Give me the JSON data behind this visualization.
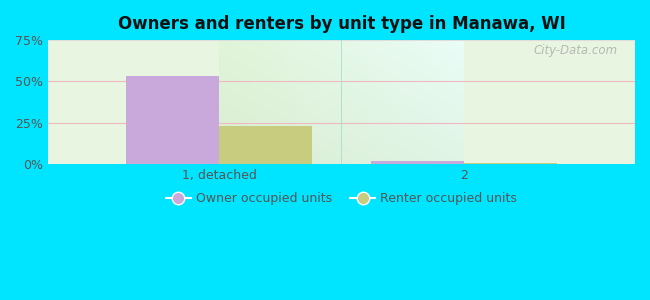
{
  "title": "Owners and renters by unit type in Manawa, WI",
  "categories": [
    "1, detached",
    "2"
  ],
  "owner_values": [
    53.5,
    2.2
  ],
  "renter_values": [
    23.0,
    1.0
  ],
  "owner_color": "#c9a8dc",
  "renter_color": "#c8cc7e",
  "owner_label": "Owner occupied units",
  "renter_label": "Renter occupied units",
  "ylim": [
    0,
    75
  ],
  "yticks": [
    0,
    25,
    50,
    75
  ],
  "ytick_labels": [
    "0%",
    "25%",
    "50%",
    "75%"
  ],
  "bar_width": 0.38,
  "background_color_fig": "#00e5ff",
  "grid_color_h25": "#f5c8d0",
  "grid_color_h50": "#f5c8d0",
  "grid_color_h75": "#e8e8e8",
  "watermark": "City-Data.com"
}
